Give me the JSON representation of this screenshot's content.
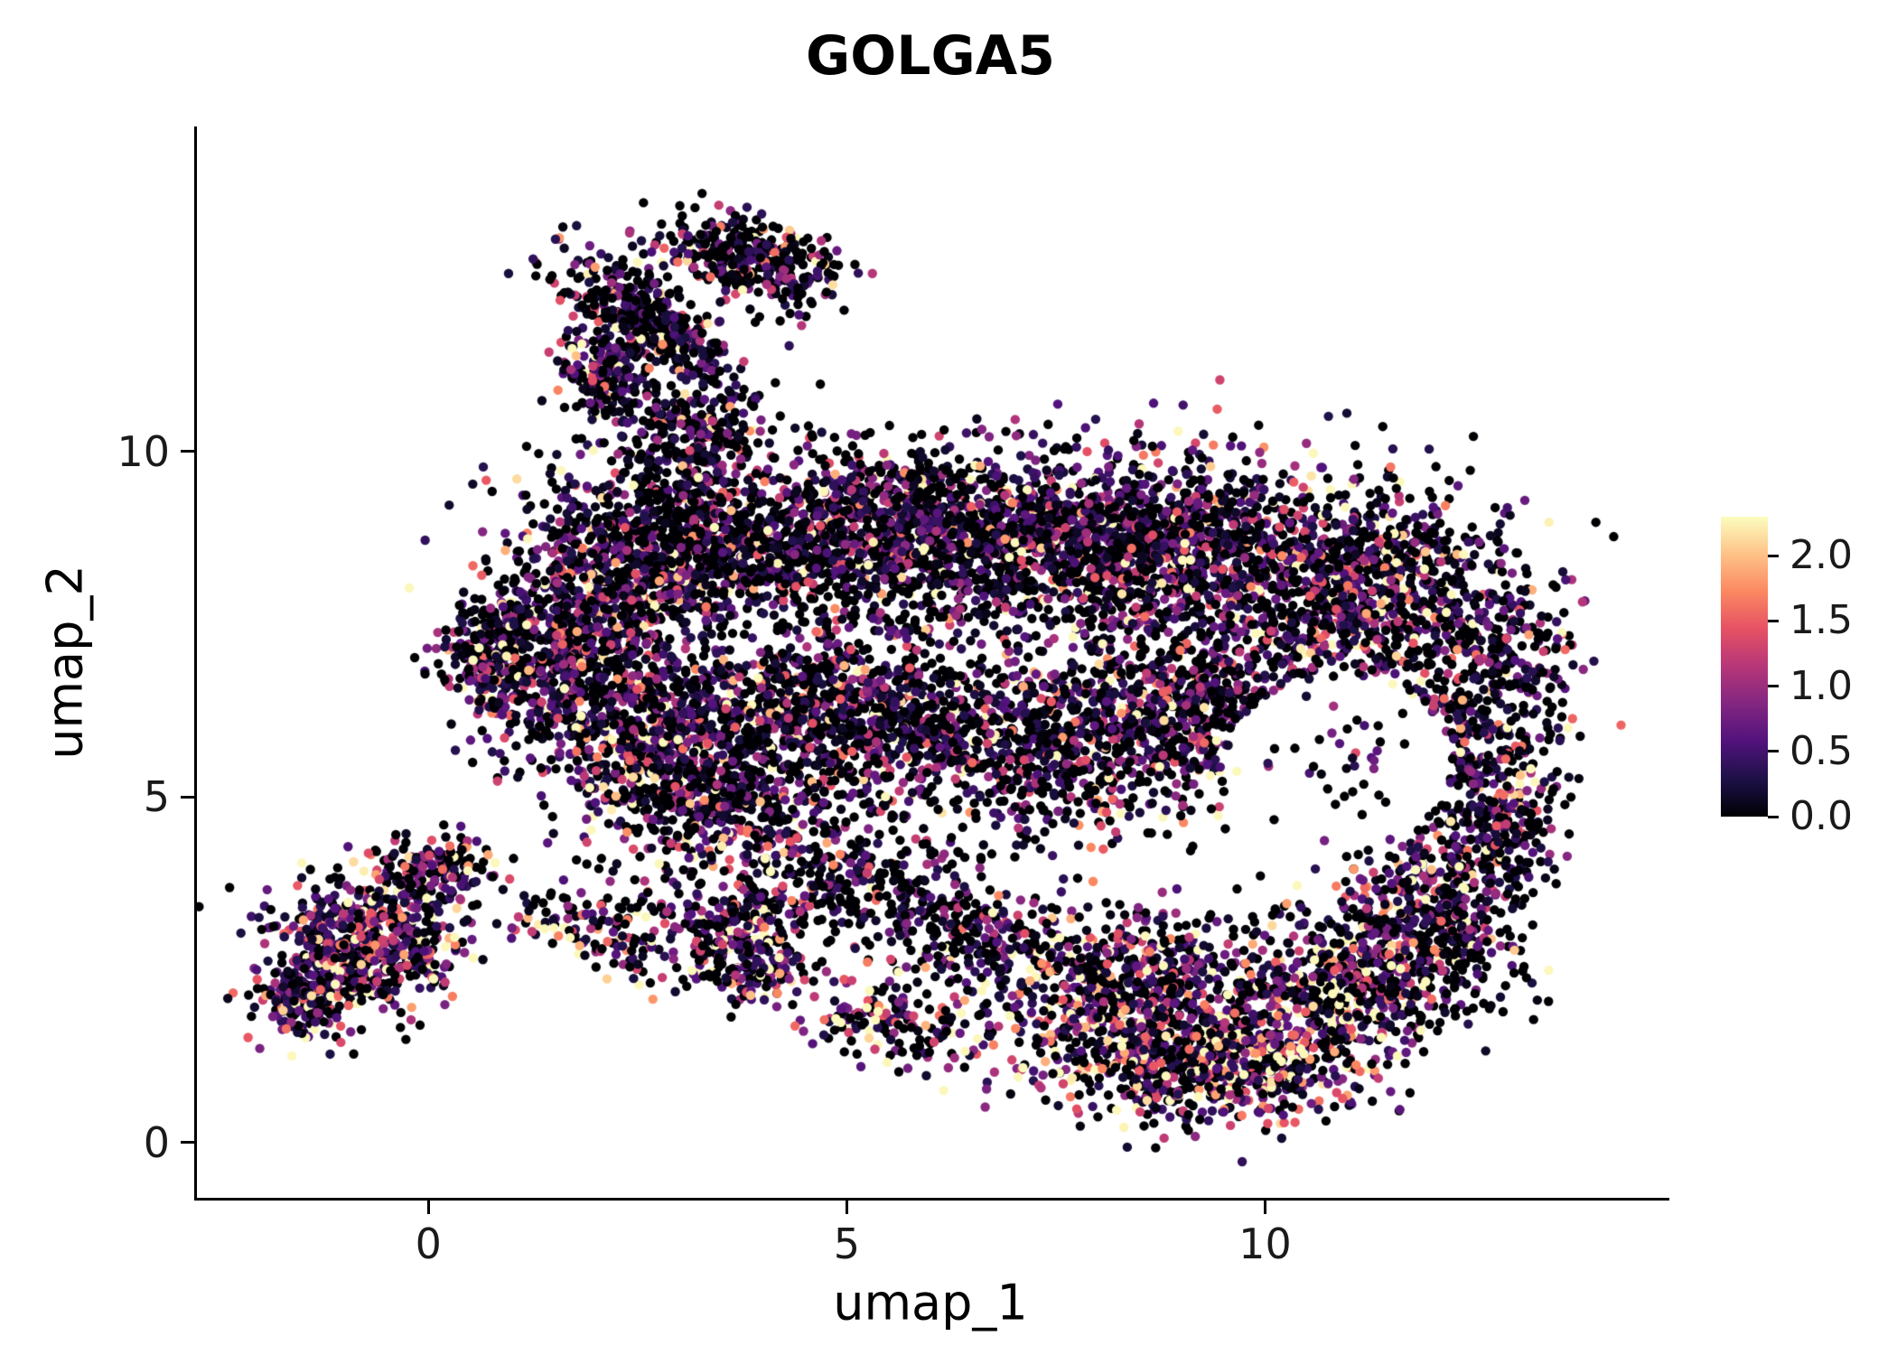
{
  "figure": {
    "background": "#ffffff"
  },
  "chart_data": {
    "type": "scatter",
    "title": "GOLGA5",
    "xlabel": "umap_1",
    "ylabel": "umap_2",
    "x_range": [
      -2.8,
      14.8
    ],
    "y_range": [
      -0.8,
      14.7
    ],
    "grid": false,
    "legend_position": "right",
    "point_radius_px": 5.2,
    "seed": 1337,
    "x_ticks": [
      {
        "value": 0,
        "label": "0"
      },
      {
        "value": 5,
        "label": "5"
      },
      {
        "value": 10,
        "label": "10"
      }
    ],
    "y_ticks": [
      {
        "value": 0,
        "label": "0"
      },
      {
        "value": 5,
        "label": "5"
      },
      {
        "value": 10,
        "label": "10"
      }
    ],
    "colorbar": {
      "vmin": 0.0,
      "vmax": 2.3,
      "colormap": "magma",
      "stops": [
        "#000004",
        "#1d1147",
        "#51127c",
        "#822681",
        "#b63679",
        "#e65164",
        "#fb8861",
        "#fec287",
        "#fcfdbf"
      ],
      "ticks": [
        {
          "value": 0.0,
          "label": "0.0"
        },
        {
          "value": 0.5,
          "label": "0.5"
        },
        {
          "value": 1.0,
          "label": "1.0"
        },
        {
          "value": 1.5,
          "label": "1.5"
        },
        {
          "value": 2.0,
          "label": "2.0"
        }
      ]
    },
    "holes": [
      {
        "cx": 10.85,
        "cy": 5.5,
        "rx": 1.35,
        "ry": 1.25
      }
    ],
    "clusters": [
      {
        "name": "top-arm-1",
        "cx": 2.6,
        "cy": 11.9,
        "rx": 1.15,
        "ry": 0.5,
        "rot": -38,
        "n": 400,
        "zero_frac": 0.38,
        "value_scale": 0.7
      },
      {
        "name": "top-arm-2",
        "cx": 3.6,
        "cy": 12.85,
        "rx": 0.85,
        "ry": 0.45,
        "rot": -20,
        "n": 280,
        "zero_frac": 0.38,
        "value_scale": 0.7
      },
      {
        "name": "top-arm-3",
        "cx": 2.05,
        "cy": 11.15,
        "rx": 0.5,
        "ry": 0.65,
        "rot": 0,
        "n": 190,
        "zero_frac": 0.35,
        "value_scale": 0.75
      },
      {
        "name": "top-arm-sparse",
        "cx": 4.45,
        "cy": 12.5,
        "rx": 0.55,
        "ry": 0.6,
        "rot": 0,
        "n": 90,
        "zero_frac": 0.45,
        "value_scale": 0.7
      },
      {
        "name": "neck",
        "cx": 3.15,
        "cy": 10.35,
        "rx": 0.8,
        "ry": 0.8,
        "rot": 0,
        "n": 230,
        "zero_frac": 0.42,
        "value_scale": 0.65
      },
      {
        "name": "upper-1",
        "cx": 3.0,
        "cy": 8.6,
        "rx": 1.7,
        "ry": 1.25,
        "rot": 0,
        "n": 1250,
        "zero_frac": 0.36,
        "value_scale": 0.72
      },
      {
        "name": "upper-2",
        "cx": 5.8,
        "cy": 8.8,
        "rx": 1.9,
        "ry": 1.15,
        "rot": 0,
        "n": 1250,
        "zero_frac": 0.4,
        "value_scale": 0.7
      },
      {
        "name": "upper-3",
        "cx": 8.5,
        "cy": 8.6,
        "rx": 1.9,
        "ry": 1.25,
        "rot": 0,
        "n": 1350,
        "zero_frac": 0.38,
        "value_scale": 0.72
      },
      {
        "name": "upper-4",
        "cx": 11.0,
        "cy": 8.0,
        "rx": 1.6,
        "ry": 1.35,
        "rot": 0,
        "n": 950,
        "zero_frac": 0.36,
        "value_scale": 0.75
      },
      {
        "name": "right-lobe",
        "cx": 12.6,
        "cy": 6.6,
        "rx": 0.95,
        "ry": 1.7,
        "rot": 0,
        "n": 480,
        "zero_frac": 0.4,
        "value_scale": 0.7
      },
      {
        "name": "left-bulge",
        "cx": 1.6,
        "cy": 7.3,
        "rx": 1.05,
        "ry": 1.05,
        "rot": 0,
        "n": 520,
        "zero_frac": 0.3,
        "value_scale": 0.8
      },
      {
        "name": "left-edge",
        "cx": 0.8,
        "cy": 7.0,
        "rx": 0.6,
        "ry": 0.85,
        "rot": 0,
        "n": 240,
        "zero_frac": 0.3,
        "value_scale": 0.8
      },
      {
        "name": "mid-1",
        "cx": 2.6,
        "cy": 6.0,
        "rx": 1.45,
        "ry": 1.0,
        "rot": 0,
        "n": 700,
        "zero_frac": 0.34,
        "value_scale": 0.75
      },
      {
        "name": "mid-2",
        "cx": 5.0,
        "cy": 6.2,
        "rx": 1.8,
        "ry": 1.1,
        "rot": 0,
        "n": 850,
        "zero_frac": 0.4,
        "value_scale": 0.72
      },
      {
        "name": "mid-3",
        "cx": 7.5,
        "cy": 5.8,
        "rx": 1.8,
        "ry": 1.25,
        "rot": 0,
        "n": 800,
        "zero_frac": 0.4,
        "value_scale": 0.72
      },
      {
        "name": "mid-4",
        "cx": 9.3,
        "cy": 6.3,
        "rx": 1.25,
        "ry": 1.05,
        "rot": 0,
        "n": 480,
        "zero_frac": 0.38,
        "value_scale": 0.75
      },
      {
        "name": "mid-5",
        "cx": 3.3,
        "cy": 4.85,
        "rx": 1.35,
        "ry": 0.85,
        "rot": 0,
        "n": 460,
        "zero_frac": 0.36,
        "value_scale": 0.75
      },
      {
        "name": "sparse-low-1",
        "cx": 5.0,
        "cy": 3.9,
        "rx": 1.25,
        "ry": 0.8,
        "rot": 0,
        "n": 240,
        "zero_frac": 0.45,
        "value_scale": 0.7
      },
      {
        "name": "sparse-low-2",
        "cx": 6.4,
        "cy": 3.1,
        "rx": 1.05,
        "ry": 0.75,
        "rot": 0,
        "n": 210,
        "zero_frac": 0.45,
        "value_scale": 0.75
      },
      {
        "name": "trail-left",
        "cx": 3.6,
        "cy": 3.4,
        "rx": 0.95,
        "ry": 0.5,
        "rot": 0,
        "n": 150,
        "zero_frac": 0.4,
        "value_scale": 0.8
      },
      {
        "name": "warm-hook",
        "cx": 3.8,
        "cy": 2.7,
        "rx": 0.75,
        "ry": 0.6,
        "rot": 0,
        "n": 210,
        "zero_frac": 0.28,
        "value_scale": 1.15
      },
      {
        "name": "warm-trail",
        "cx": 5.6,
        "cy": 1.7,
        "rx": 0.95,
        "ry": 0.5,
        "rot": -15,
        "n": 140,
        "zero_frac": 0.35,
        "value_scale": 1.0
      },
      {
        "name": "bottom-warm-1",
        "cx": 8.2,
        "cy": 2.2,
        "rx": 1.6,
        "ry": 1.05,
        "rot": 0,
        "n": 720,
        "zero_frac": 0.3,
        "value_scale": 1.05
      },
      {
        "name": "bottom-warm-2",
        "cx": 9.4,
        "cy": 1.15,
        "rx": 1.55,
        "ry": 0.8,
        "rot": 0,
        "n": 760,
        "zero_frac": 0.26,
        "value_scale": 1.15
      },
      {
        "name": "bottom-warm-3",
        "cx": 10.9,
        "cy": 2.3,
        "rx": 1.25,
        "ry": 1.0,
        "rot": 0,
        "n": 560,
        "zero_frac": 0.3,
        "value_scale": 1.05
      },
      {
        "name": "bottom-right",
        "cx": 11.9,
        "cy": 3.6,
        "rx": 0.95,
        "ry": 0.95,
        "rot": 0,
        "n": 340,
        "zero_frac": 0.36,
        "value_scale": 0.85
      },
      {
        "name": "right-edge-low",
        "cx": 12.8,
        "cy": 4.7,
        "rx": 0.6,
        "ry": 1.0,
        "rot": 0,
        "n": 220,
        "zero_frac": 0.38,
        "value_scale": 0.8
      },
      {
        "name": "bottom-right-sparse",
        "cx": 12.35,
        "cy": 2.7,
        "rx": 0.8,
        "ry": 0.8,
        "rot": 0,
        "n": 130,
        "zero_frac": 0.45,
        "value_scale": 0.8
      },
      {
        "name": "hole-sparse",
        "cx": 10.9,
        "cy": 5.5,
        "rx": 1.1,
        "ry": 1.0,
        "rot": 0,
        "n": 45,
        "zero_frac": 0.45,
        "value_scale": 0.8,
        "ignore_holes": true
      },
      {
        "name": "left-cluster-main",
        "cx": -0.8,
        "cy": 2.9,
        "rx": 1.05,
        "ry": 0.9,
        "rot": 0,
        "n": 620,
        "zero_frac": 0.22,
        "value_scale": 0.95
      },
      {
        "name": "left-cluster-low",
        "cx": -1.5,
        "cy": 2.1,
        "rx": 0.55,
        "ry": 0.5,
        "rot": 0,
        "n": 180,
        "zero_frac": 0.25,
        "value_scale": 0.9
      },
      {
        "name": "left-cluster-top",
        "cx": 0.1,
        "cy": 3.95,
        "rx": 0.65,
        "ry": 0.5,
        "rot": 0,
        "n": 140,
        "zero_frac": 0.3,
        "value_scale": 0.85
      },
      {
        "name": "bridge-sparse",
        "cx": 1.5,
        "cy": 3.3,
        "rx": 0.75,
        "ry": 0.45,
        "rot": 0,
        "n": 70,
        "zero_frac": 0.4,
        "value_scale": 0.8
      },
      {
        "name": "small-group",
        "cx": 2.35,
        "cy": 2.8,
        "rx": 0.45,
        "ry": 0.55,
        "rot": 0,
        "n": 70,
        "zero_frac": 0.35,
        "value_scale": 0.85
      }
    ]
  }
}
